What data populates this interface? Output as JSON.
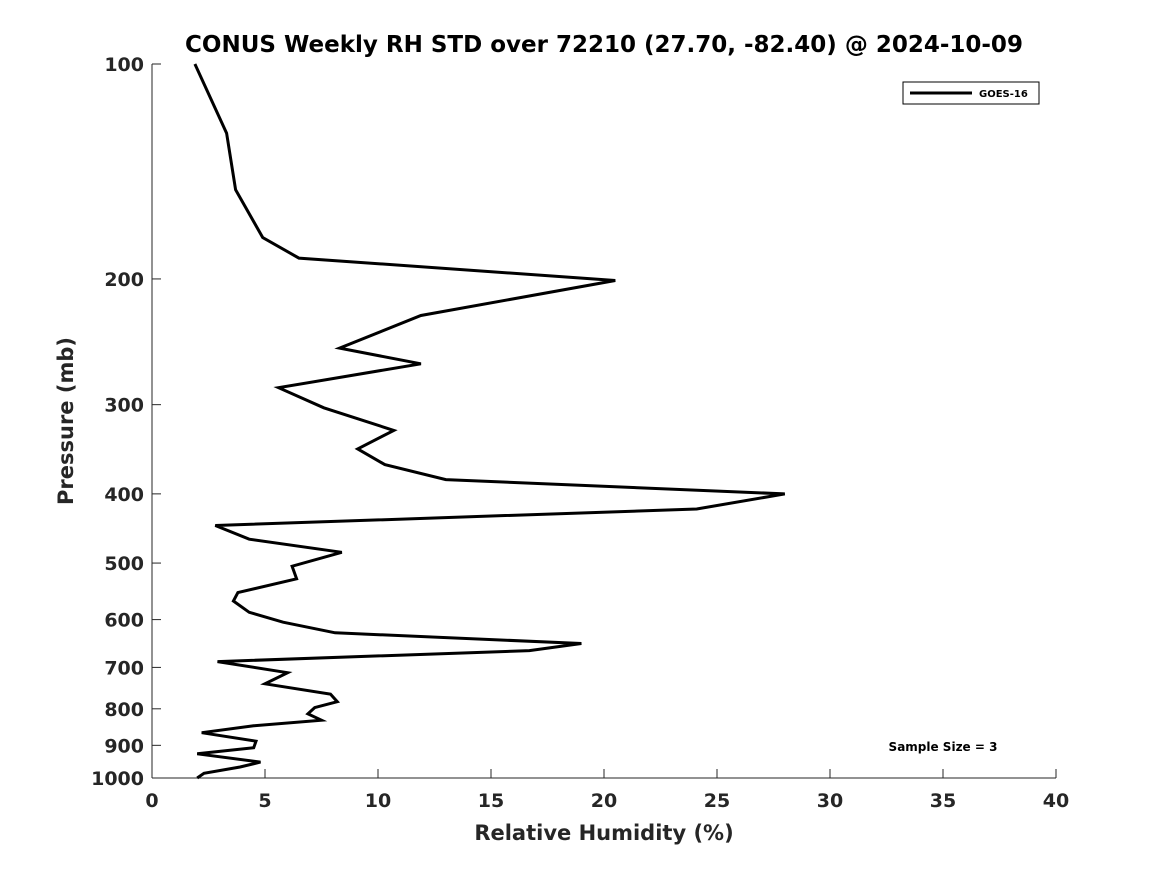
{
  "chart_data": {
    "type": "line",
    "title": "CONUS Weekly RH STD over 72210 (27.70, -82.40) @ 2024-10-09",
    "xlabel": "Relative Humidity (%)",
    "ylabel": "Pressure (mb)",
    "xlim": [
      0,
      40
    ],
    "ylim": [
      100,
      1000
    ],
    "y_scale": "log",
    "y_reversed": true,
    "x_ticks": [
      "0",
      "5",
      "10",
      "15",
      "20",
      "25",
      "30",
      "35",
      "40"
    ],
    "y_ticks": [
      "100",
      "200",
      "300",
      "400",
      "500",
      "600",
      "700",
      "800",
      "900",
      "1000"
    ],
    "grid": false,
    "legend_position": "top-right",
    "series": [
      {
        "name": "GOES-16",
        "color": "#000000",
        "points": [
          [
            1.9,
            100
          ],
          [
            3.3,
            125
          ],
          [
            3.7,
            150
          ],
          [
            4.9,
            175
          ],
          [
            6.5,
            187
          ],
          [
            20.5,
            201
          ],
          [
            11.9,
            225
          ],
          [
            8.3,
            250
          ],
          [
            11.9,
            263
          ],
          [
            5.6,
            284
          ],
          [
            7.6,
            303
          ],
          [
            10.7,
            326
          ],
          [
            9.1,
            346
          ],
          [
            10.3,
            364
          ],
          [
            13.0,
            382
          ],
          [
            28.0,
            400
          ],
          [
            24.1,
            420
          ],
          [
            2.8,
            443
          ],
          [
            4.3,
            463
          ],
          [
            8.4,
            483
          ],
          [
            6.2,
            505
          ],
          [
            6.4,
            526
          ],
          [
            3.8,
            550
          ],
          [
            3.6,
            565
          ],
          [
            4.3,
            586
          ],
          [
            5.8,
            605
          ],
          [
            8.1,
            626
          ],
          [
            19.0,
            648
          ],
          [
            16.7,
            663
          ],
          [
            2.9,
            687
          ],
          [
            6.0,
            712
          ],
          [
            5.0,
            738
          ],
          [
            7.9,
            763
          ],
          [
            8.2,
            782
          ],
          [
            7.2,
            797
          ],
          [
            6.9,
            813
          ],
          [
            7.5,
            830
          ],
          [
            4.5,
            845
          ],
          [
            2.2,
            864
          ],
          [
            4.6,
            888
          ],
          [
            4.5,
            907
          ],
          [
            2.0,
            925
          ],
          [
            4.8,
            950
          ],
          [
            3.9,
            965
          ],
          [
            2.3,
            985
          ],
          [
            2.0,
            1000
          ]
        ]
      }
    ],
    "annotations": [
      "Sample Size = 3"
    ]
  }
}
